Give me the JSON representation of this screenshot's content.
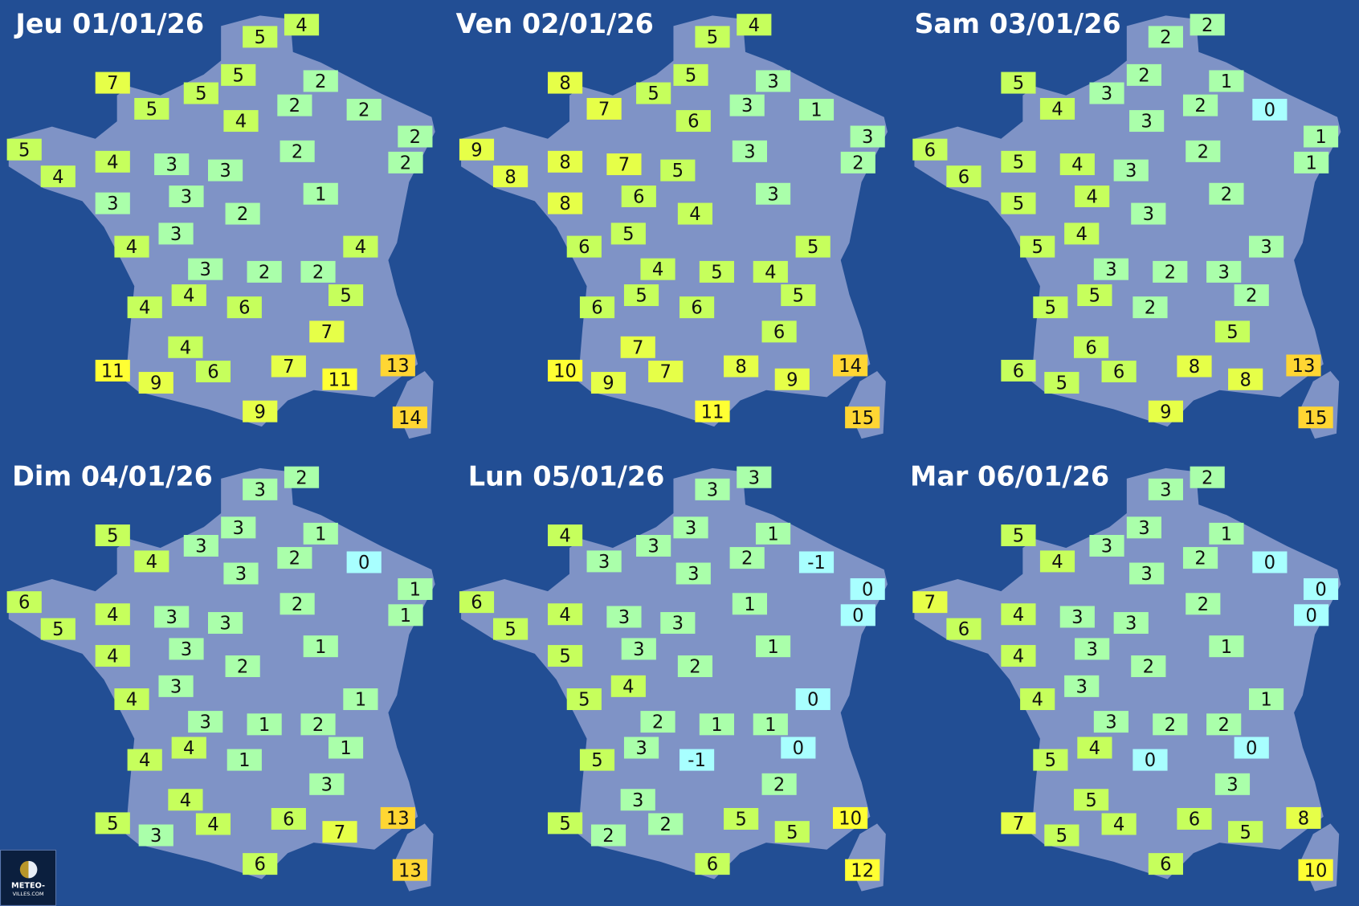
{
  "colors": {
    "background": "#224e94",
    "land": "#7f93c6",
    "le0": "#a8ffff",
    "1to3": "#aaffaa",
    "4to6": "#c6ff5c",
    "7to9": "#e6ff48",
    "10to12": "#ffff33",
    "13plus": "#ffd633"
  },
  "days": [
    {
      "title": "Jeu 01/01/26",
      "values": [
        4,
        5,
        7,
        5,
        2,
        5,
        5,
        2,
        2,
        4,
        2,
        5,
        4,
        3,
        2,
        2,
        4,
        3,
        3,
        3,
        1,
        2,
        3,
        4,
        4,
        3,
        2,
        2,
        5,
        4,
        4,
        6,
        7,
        4,
        11,
        9,
        6,
        7,
        11,
        13,
        9,
        14
      ]
    },
    {
      "title": "Ven 02/01/26",
      "values": [
        4,
        5,
        8,
        5,
        3,
        7,
        5,
        3,
        1,
        6,
        3,
        9,
        8,
        7,
        3,
        2,
        8,
        5,
        8,
        6,
        3,
        4,
        5,
        6,
        5,
        4,
        5,
        4,
        5,
        6,
        5,
        6,
        6,
        7,
        10,
        9,
        7,
        8,
        9,
        14,
        11,
        15
      ]
    },
    {
      "title": "Sam 03/01/26",
      "values": [
        2,
        2,
        5,
        2,
        1,
        4,
        3,
        2,
        0,
        3,
        1,
        6,
        5,
        4,
        2,
        1,
        6,
        3,
        5,
        4,
        2,
        3,
        4,
        5,
        3,
        3,
        2,
        3,
        2,
        5,
        5,
        2,
        5,
        6,
        6,
        5,
        6,
        8,
        8,
        13,
        9,
        15
      ]
    },
    {
      "title": "Dim 04/01/26",
      "values": [
        2,
        3,
        5,
        3,
        1,
        4,
        3,
        2,
        0,
        3,
        1,
        6,
        4,
        3,
        2,
        1,
        5,
        3,
        4,
        3,
        1,
        2,
        3,
        4,
        1,
        3,
        1,
        2,
        1,
        4,
        4,
        1,
        3,
        4,
        5,
        3,
        4,
        6,
        7,
        13,
        6,
        13
      ]
    },
    {
      "title": "Lun 05/01/26",
      "values": [
        3,
        3,
        4,
        3,
        1,
        3,
        3,
        2,
        -1,
        3,
        0,
        6,
        4,
        3,
        1,
        0,
        5,
        3,
        5,
        3,
        1,
        2,
        4,
        5,
        0,
        2,
        1,
        1,
        0,
        5,
        3,
        -1,
        2,
        3,
        5,
        2,
        2,
        5,
        5,
        10,
        6,
        12
      ]
    },
    {
      "title": "Mar 06/01/26",
      "values": [
        2,
        3,
        5,
        3,
        1,
        4,
        3,
        2,
        0,
        3,
        0,
        7,
        4,
        3,
        2,
        0,
        6,
        3,
        4,
        3,
        1,
        2,
        3,
        4,
        1,
        3,
        2,
        2,
        0,
        5,
        4,
        0,
        3,
        5,
        7,
        5,
        4,
        6,
        5,
        8,
        6,
        10
      ]
    }
  ],
  "logo": {
    "line1": "METEO-",
    "line2": "VILLES.COM"
  }
}
